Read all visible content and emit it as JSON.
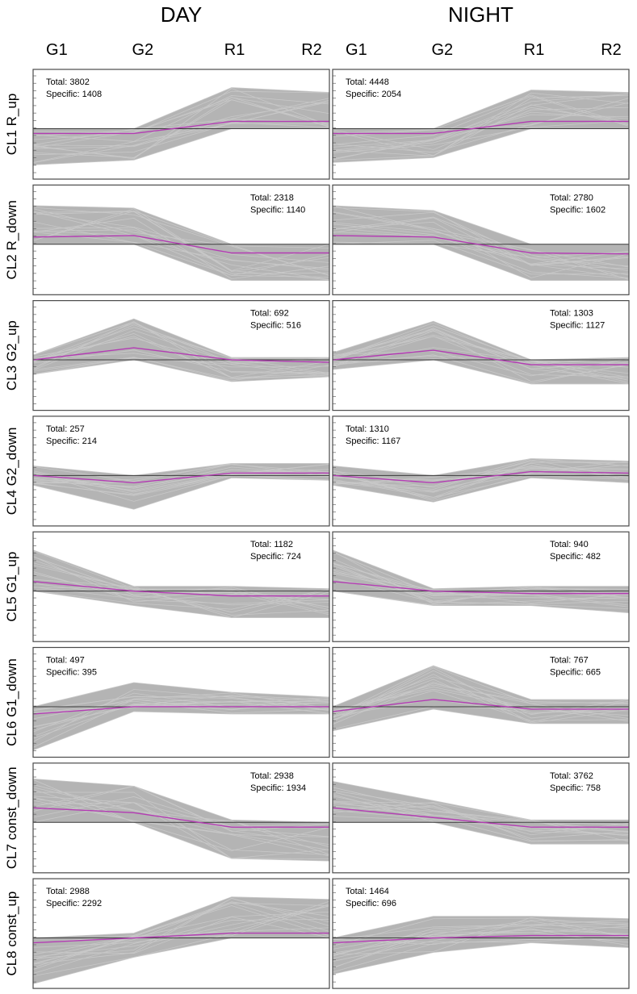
{
  "chart_data": {
    "type": "line",
    "conditions": [
      "DAY",
      "NIGHT"
    ],
    "stages": [
      "G1",
      "G2",
      "R1",
      "R2"
    ],
    "clusters": [
      {
        "label": "CL1 R_up",
        "panels": [
          {
            "condition": "DAY",
            "total_label": "Total: 3802",
            "specific_label": "Specific: 1408",
            "label_corner": "top-left",
            "mean": [
              -0.1,
              -0.1,
              0.15,
              0.15
            ],
            "upper": [
              0.0,
              0.0,
              0.85,
              0.75
            ],
            "lower": [
              -0.75,
              -0.65,
              0.0,
              0.0
            ]
          },
          {
            "condition": "NIGHT",
            "total_label": "Total: 4448",
            "specific_label": "Specific: 2054",
            "label_corner": "top-left",
            "mean": [
              -0.1,
              -0.1,
              0.15,
              0.15
            ],
            "upper": [
              0.0,
              0.0,
              0.8,
              0.75
            ],
            "lower": [
              -0.7,
              -0.6,
              0.0,
              0.0
            ]
          }
        ]
      },
      {
        "label": "CL2 R_down",
        "panels": [
          {
            "condition": "DAY",
            "total_label": "Total: 2318",
            "specific_label": "Specific: 1140",
            "label_corner": "top-right",
            "mean": [
              0.15,
              0.18,
              -0.18,
              -0.18
            ],
            "upper": [
              0.8,
              0.75,
              0.0,
              0.0
            ],
            "lower": [
              0.0,
              0.0,
              -0.75,
              -0.75
            ]
          },
          {
            "condition": "NIGHT",
            "total_label": "Total: 2780",
            "specific_label": "Specific: 1602",
            "label_corner": "top-right",
            "mean": [
              0.18,
              0.15,
              -0.18,
              -0.2
            ],
            "upper": [
              0.8,
              0.7,
              0.0,
              0.0
            ],
            "lower": [
              0.0,
              0.0,
              -0.75,
              -0.75
            ]
          }
        ]
      },
      {
        "label": "CL3 G2_up",
        "panels": [
          {
            "condition": "DAY",
            "total_label": "Total: 692",
            "specific_label": "Specific: 516",
            "label_corner": "top-right",
            "mean": [
              0.0,
              0.25,
              0.0,
              -0.05
            ],
            "upper": [
              0.1,
              0.85,
              0.05,
              0.05
            ],
            "lower": [
              -0.3,
              0.0,
              -0.45,
              -0.35
            ]
          },
          {
            "condition": "NIGHT",
            "total_label": "Total: 1303",
            "specific_label": "Specific: 1127",
            "label_corner": "top-right",
            "mean": [
              0.0,
              0.2,
              -0.1,
              -0.1
            ],
            "upper": [
              0.15,
              0.8,
              0.0,
              0.05
            ],
            "lower": [
              -0.2,
              0.0,
              -0.5,
              -0.5
            ]
          }
        ]
      },
      {
        "label": "CL4 G2_down",
        "panels": [
          {
            "condition": "DAY",
            "total_label": "Total: 257",
            "specific_label": "Specific: 214",
            "label_corner": "top-left",
            "mean": [
              0.0,
              -0.15,
              0.05,
              0.05
            ],
            "upper": [
              0.2,
              0.0,
              0.25,
              0.25
            ],
            "lower": [
              -0.2,
              -0.7,
              -0.05,
              -0.1
            ]
          },
          {
            "condition": "NIGHT",
            "total_label": "Total: 1310",
            "specific_label": "Specific: 1167",
            "label_corner": "top-left",
            "mean": [
              0.0,
              -0.15,
              0.08,
              0.05
            ],
            "upper": [
              0.2,
              0.0,
              0.35,
              0.3
            ],
            "lower": [
              -0.2,
              -0.55,
              -0.05,
              -0.15
            ]
          }
        ]
      },
      {
        "label": "CL5 G1_up",
        "panels": [
          {
            "condition": "DAY",
            "total_label": "Total: 1182",
            "specific_label": "Specific: 724",
            "label_corner": "top-right",
            "mean": [
              0.2,
              0.0,
              -0.1,
              -0.1
            ],
            "upper": [
              0.85,
              0.1,
              0.1,
              0.05
            ],
            "lower": [
              0.0,
              -0.3,
              -0.55,
              -0.55
            ]
          },
          {
            "condition": "NIGHT",
            "total_label": "Total: 940",
            "specific_label": "Specific: 482",
            "label_corner": "top-right",
            "mean": [
              0.2,
              0.0,
              -0.05,
              -0.05
            ],
            "upper": [
              0.85,
              0.05,
              0.1,
              0.1
            ],
            "lower": [
              0.0,
              -0.3,
              -0.3,
              -0.45
            ]
          }
        ]
      },
      {
        "label": "CL6 G1_down",
        "panels": [
          {
            "condition": "DAY",
            "total_label": "Total: 497",
            "specific_label": "Specific: 395",
            "label_corner": "top-left",
            "mean": [
              -0.15,
              0.0,
              0.0,
              0.0
            ],
            "upper": [
              0.0,
              0.5,
              0.3,
              0.2
            ],
            "lower": [
              -0.9,
              -0.1,
              -0.15,
              -0.15
            ]
          },
          {
            "condition": "NIGHT",
            "total_label": "Total: 767",
            "specific_label": "Specific: 665",
            "label_corner": "top-right",
            "mean": [
              -0.1,
              0.15,
              -0.05,
              -0.05
            ],
            "upper": [
              0.0,
              0.85,
              0.15,
              0.15
            ],
            "lower": [
              -0.5,
              -0.05,
              -0.35,
              -0.35
            ]
          }
        ]
      },
      {
        "label": "CL7 const_down",
        "panels": [
          {
            "condition": "DAY",
            "total_label": "Total: 2938",
            "specific_label": "Specific:  1934",
            "label_corner": "top-right",
            "mean": [
              0.3,
              0.2,
              -0.1,
              -0.1
            ],
            "upper": [
              0.9,
              0.75,
              0.05,
              0.0
            ],
            "lower": [
              0.0,
              0.0,
              -0.75,
              -0.8
            ]
          },
          {
            "condition": "NIGHT",
            "total_label": "Total:  3762",
            "specific_label": "Specific:  758",
            "label_corner": "top-right",
            "mean": [
              0.3,
              0.1,
              -0.1,
              -0.1
            ],
            "upper": [
              0.85,
              0.45,
              0.05,
              0.05
            ],
            "lower": [
              0.0,
              0.0,
              -0.45,
              -0.45
            ]
          }
        ]
      },
      {
        "label": "CL8 const_up",
        "panels": [
          {
            "condition": "DAY",
            "total_label": "Total: 2988",
            "specific_label": "Specific:  2292",
            "label_corner": "top-left",
            "mean": [
              -0.1,
              0.0,
              0.1,
              0.1
            ],
            "upper": [
              0.0,
              0.1,
              0.85,
              0.8
            ],
            "lower": [
              -0.95,
              -0.4,
              0.0,
              0.0
            ]
          },
          {
            "condition": "NIGHT",
            "total_label": "Total: 1464",
            "specific_label": "Specific: 696",
            "label_corner": "top-left",
            "mean": [
              -0.1,
              0.0,
              0.05,
              0.05
            ],
            "upper": [
              0.0,
              0.45,
              0.45,
              0.4
            ],
            "lower": [
              -0.75,
              -0.3,
              -0.1,
              -0.2
            ]
          }
        ]
      }
    ],
    "y_range": [
      -1,
      1
    ],
    "ylabel": "",
    "colors": {
      "profiles": "#b4b4b4",
      "mean": "#b33bb3",
      "zero_line": "#3a3a3a",
      "frame": "#4a4a4a"
    }
  }
}
